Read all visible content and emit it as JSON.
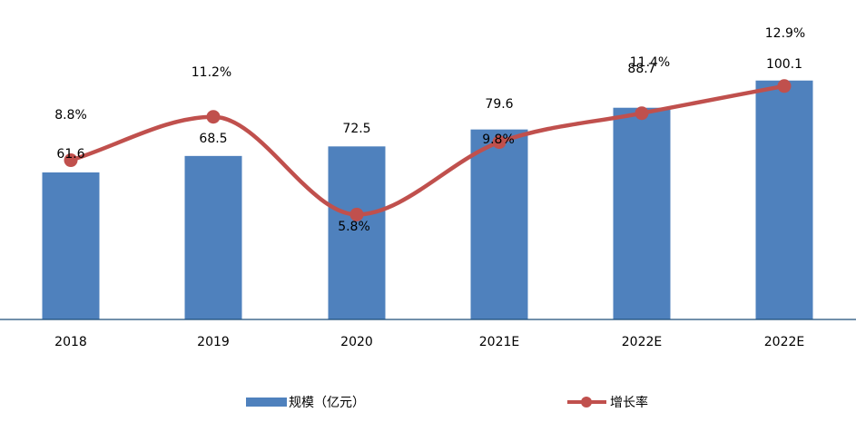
{
  "chart_data": {
    "type": "bar",
    "categories": [
      "2018",
      "2019",
      "2020",
      "2021E",
      "2022E",
      "2022E"
    ],
    "series": [
      {
        "name": "规模（亿元）",
        "type": "bar",
        "axis": "left",
        "color": "#4F81BD",
        "values": [
          61.6,
          68.5,
          72.5,
          79.6,
          88.7,
          100.1
        ],
        "labels": [
          "61.6",
          "68.5",
          "72.5",
          "79.6",
          "88.7",
          "100.1"
        ]
      },
      {
        "name": "增长率",
        "type": "line",
        "axis": "right",
        "smooth": true,
        "color": "#C0504D",
        "values": [
          8.8,
          11.2,
          5.8,
          9.8,
          11.4,
          12.9
        ],
        "labels": [
          "8.8%",
          "11.2%",
          "5.8%",
          "9.8%",
          "11.4%",
          "12.9%"
        ]
      }
    ],
    "bar_axis_range": [
      0,
      100
    ],
    "rate_axis_range_percent": [
      0,
      16
    ],
    "grid": false,
    "legend_position": "bottom",
    "axis_line_color": "#1F4E79"
  }
}
